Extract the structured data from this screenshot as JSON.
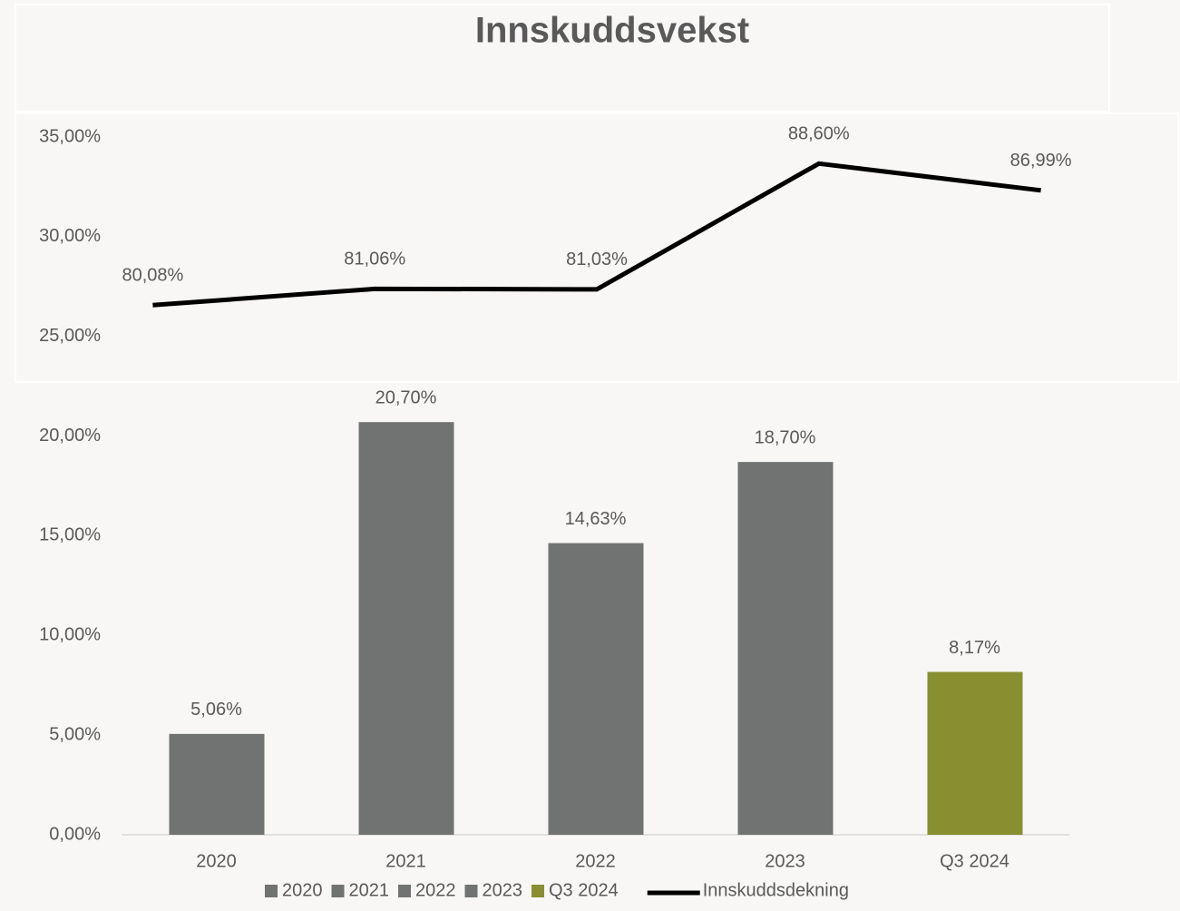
{
  "chart_data": {
    "type": "bar-line",
    "title": "Innskuddsvekst",
    "categories": [
      "2020",
      "2021",
      "2022",
      "2023",
      "Q3 2024"
    ],
    "values": [
      5.06,
      20.7,
      14.63,
      18.7,
      8.17
    ],
    "value_labels": [
      "5,06%",
      "20,70%",
      "14,63%",
      "18,70%",
      "8,17%"
    ],
    "colors": [
      "#717372",
      "#717372",
      "#717372",
      "#717372",
      "#878f31"
    ],
    "series": [
      {
        "name": "Innskuddsdekning",
        "color": "#000000",
        "axis": "y2",
        "values": [
          80.08,
          81.06,
          81.03,
          88.6,
          86.99
        ],
        "value_labels": [
          "80,08%",
          "81,06%",
          "81,03%",
          "88,60%",
          "86,99%"
        ]
      }
    ],
    "ylim": [
      0,
      35
    ],
    "yticks": [
      {
        "value": 0,
        "label": "0,00%"
      },
      {
        "value": 5,
        "label": "5,00%"
      },
      {
        "value": 10,
        "label": "10,00%"
      },
      {
        "value": 15,
        "label": "15,00%"
      },
      {
        "value": 20,
        "label": "20,00%"
      },
      {
        "value": 25,
        "label": "25,00%"
      },
      {
        "value": 30,
        "label": "30,00%"
      },
      {
        "value": 35,
        "label": "35,00%"
      }
    ],
    "y2lim": [
      48.2,
      90.2
    ],
    "legend": "bottom"
  }
}
